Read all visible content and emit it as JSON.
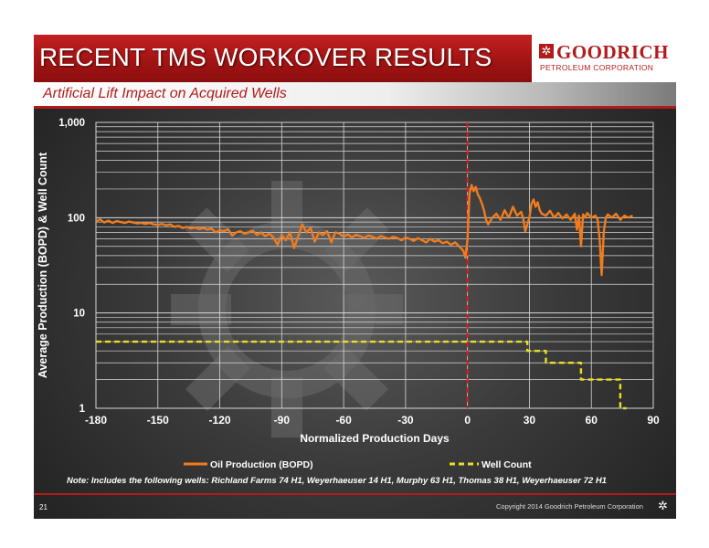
{
  "slide": {
    "title": "RECENT TMS WORKOVER RESULTS",
    "subtitle": "Artificial Lift Impact on Acquired Wells",
    "logo_name": "GOODRICH",
    "logo_subtext": "PETROLEUM CORPORATION",
    "logo_icon": "goodrich-sun-icon",
    "note": "Note:  Includes the following wells: Richland Farms 74 H1, Weyerhaeuser 14  H1, Murphy 63 H1, Thomas 38 H1, Weyerhaeuser 72 H1",
    "page_number": "21",
    "copyright": "Copyright 2014 Goodrich Petroleum Corporation",
    "copyright_icon": "goodrich-sun-icon"
  },
  "colors": {
    "banner_red": "#b31b1b",
    "oil_series": "#f07c1e",
    "well_series": "#e8e020",
    "event_line": "#dd1c1c"
  },
  "chart_data": {
    "type": "line",
    "xlabel": "Normalized Production Days",
    "ylabel": "Average Production (BOPD) & Well Count",
    "xlim": [
      -180,
      90
    ],
    "x_ticks": [
      "-180",
      "-150",
      "-120",
      "-90",
      "-60",
      "-30",
      "0",
      "30",
      "60",
      "90"
    ],
    "y_scale": "log",
    "ylim": [
      1,
      1000
    ],
    "y_ticks": [
      "1",
      "10",
      "100",
      "1,000"
    ],
    "grid": true,
    "vertical_marker_x": 0,
    "legend_position": "bottom",
    "series": [
      {
        "name": "Oil Production (BOPD)",
        "color": "#f07c1e",
        "style": "solid",
        "points": [
          [
            -180,
            92
          ],
          [
            -178,
            96
          ],
          [
            -176,
            89
          ],
          [
            -174,
            93
          ],
          [
            -172,
            88
          ],
          [
            -170,
            92
          ],
          [
            -168,
            90
          ],
          [
            -166,
            88
          ],
          [
            -164,
            91
          ],
          [
            -162,
            89
          ],
          [
            -160,
            87
          ],
          [
            -158,
            88
          ],
          [
            -156,
            86
          ],
          [
            -154,
            88
          ],
          [
            -152,
            85
          ],
          [
            -150,
            84
          ],
          [
            -148,
            86
          ],
          [
            -146,
            83
          ],
          [
            -144,
            85
          ],
          [
            -142,
            80
          ],
          [
            -140,
            82
          ],
          [
            -138,
            78
          ],
          [
            -136,
            80
          ],
          [
            -134,
            77
          ],
          [
            -132,
            79
          ],
          [
            -130,
            76
          ],
          [
            -128,
            78
          ],
          [
            -126,
            75
          ],
          [
            -124,
            77
          ],
          [
            -122,
            70
          ],
          [
            -120,
            74
          ],
          [
            -118,
            72
          ],
          [
            -116,
            76
          ],
          [
            -114,
            65
          ],
          [
            -112,
            70
          ],
          [
            -110,
            72
          ],
          [
            -108,
            68
          ],
          [
            -106,
            70
          ],
          [
            -104,
            73
          ],
          [
            -102,
            66
          ],
          [
            -100,
            70
          ],
          [
            -98,
            64
          ],
          [
            -96,
            68
          ],
          [
            -94,
            62
          ],
          [
            -92,
            52
          ],
          [
            -90,
            66
          ],
          [
            -88,
            58
          ],
          [
            -86,
            70
          ],
          [
            -84,
            48
          ],
          [
            -82,
            64
          ],
          [
            -80,
            85
          ],
          [
            -78,
            70
          ],
          [
            -76,
            78
          ],
          [
            -74,
            56
          ],
          [
            -72,
            70
          ],
          [
            -70,
            66
          ],
          [
            -68,
            72
          ],
          [
            -66,
            55
          ],
          [
            -64,
            70
          ],
          [
            -62,
            68
          ],
          [
            -60,
            63
          ],
          [
            -58,
            67
          ],
          [
            -56,
            62
          ],
          [
            -54,
            66
          ],
          [
            -52,
            64
          ],
          [
            -50,
            61
          ],
          [
            -48,
            65
          ],
          [
            -46,
            63
          ],
          [
            -44,
            60
          ],
          [
            -42,
            64
          ],
          [
            -40,
            62
          ],
          [
            -38,
            60
          ],
          [
            -36,
            63
          ],
          [
            -34,
            61
          ],
          [
            -32,
            58
          ],
          [
            -30,
            62
          ],
          [
            -28,
            60
          ],
          [
            -26,
            57
          ],
          [
            -24,
            61
          ],
          [
            -22,
            58
          ],
          [
            -20,
            55
          ],
          [
            -18,
            60
          ],
          [
            -16,
            56
          ],
          [
            -14,
            58
          ],
          [
            -12,
            54
          ],
          [
            -10,
            56
          ],
          [
            -8,
            52
          ],
          [
            -6,
            55
          ],
          [
            -4,
            50
          ],
          [
            -2,
            45
          ],
          [
            -1,
            38
          ],
          [
            0,
            60
          ],
          [
            1,
            180
          ],
          [
            2,
            220
          ],
          [
            3,
            190
          ],
          [
            4,
            210
          ],
          [
            5,
            175
          ],
          [
            6,
            160
          ],
          [
            7,
            140
          ],
          [
            8,
            120
          ],
          [
            9,
            95
          ],
          [
            10,
            85
          ],
          [
            12,
            100
          ],
          [
            14,
            110
          ],
          [
            16,
            95
          ],
          [
            18,
            120
          ],
          [
            20,
            100
          ],
          [
            22,
            130
          ],
          [
            24,
            105
          ],
          [
            26,
            115
          ],
          [
            27,
            98
          ],
          [
            28,
            72
          ],
          [
            29,
            85
          ],
          [
            30,
            100
          ],
          [
            31,
            140
          ],
          [
            32,
            155
          ],
          [
            33,
            130
          ],
          [
            34,
            145
          ],
          [
            35,
            120
          ],
          [
            36,
            110
          ],
          [
            38,
            105
          ],
          [
            40,
            118
          ],
          [
            42,
            100
          ],
          [
            44,
            112
          ],
          [
            46,
            98
          ],
          [
            48,
            108
          ],
          [
            50,
            95
          ],
          [
            52,
            110
          ],
          [
            53,
            75
          ],
          [
            54,
            105
          ],
          [
            55,
            50
          ],
          [
            56,
            108
          ],
          [
            57,
            100
          ],
          [
            58,
            112
          ],
          [
            60,
            100
          ],
          [
            62,
            105
          ],
          [
            63,
            96
          ],
          [
            64,
            60
          ],
          [
            65,
            25
          ],
          [
            66,
            70
          ],
          [
            67,
            100
          ],
          [
            68,
            108
          ],
          [
            70,
            100
          ],
          [
            72,
            110
          ],
          [
            74,
            95
          ],
          [
            76,
            105
          ],
          [
            78,
            100
          ],
          [
            80,
            105
          ]
        ]
      },
      {
        "name": "Well Count",
        "color": "#e8e020",
        "style": "dashed",
        "points": [
          [
            -180,
            5
          ],
          [
            29,
            5
          ],
          [
            29,
            4
          ],
          [
            38,
            4
          ],
          [
            38,
            3
          ],
          [
            55,
            3
          ],
          [
            55,
            2
          ],
          [
            74,
            2
          ],
          [
            74,
            1
          ],
          [
            77,
            1
          ]
        ]
      }
    ]
  }
}
